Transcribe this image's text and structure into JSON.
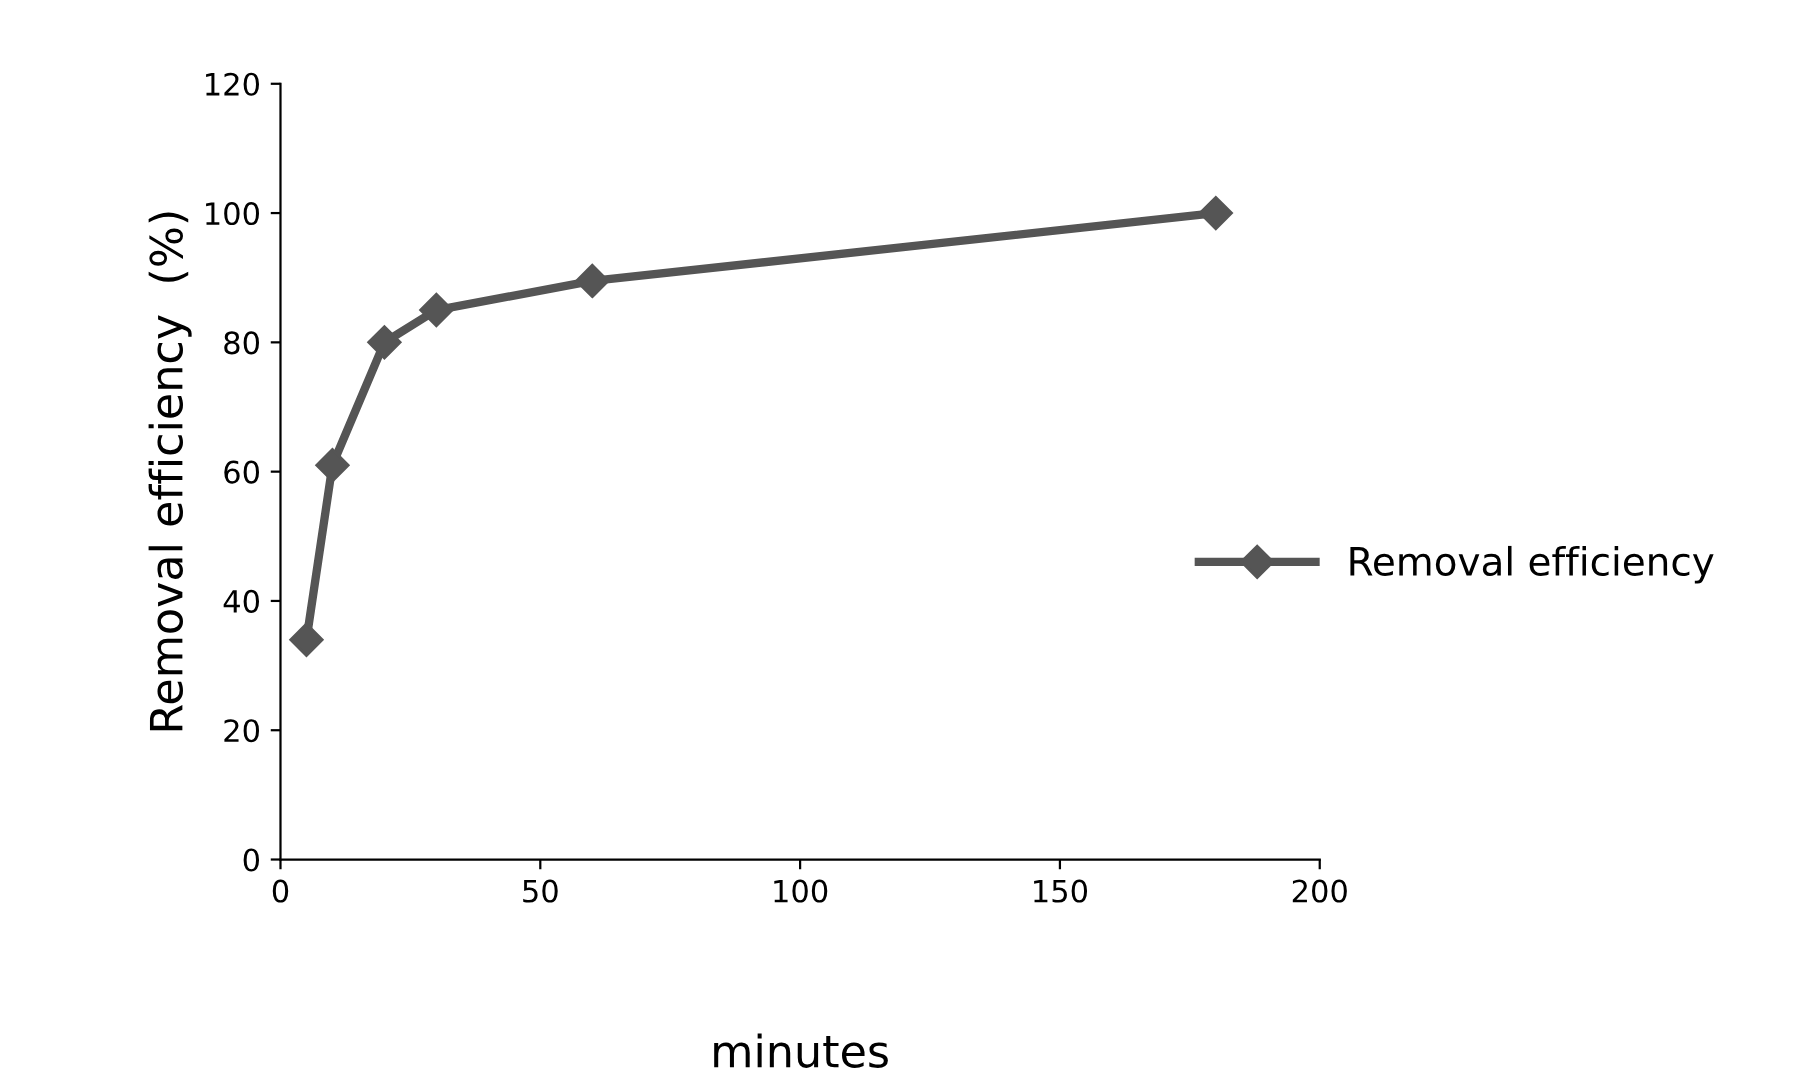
{
  "chart_data": {
    "type": "line",
    "xlabel": "minutes",
    "ylabel": "Removal efficiency  (%)",
    "x": [
      5,
      10,
      20,
      30,
      60,
      180
    ],
    "series": [
      {
        "name": "Removal efficiency",
        "color": "#555555",
        "values": [
          34,
          61,
          80,
          85,
          89.5,
          100
        ]
      }
    ],
    "xlim": [
      0,
      200
    ],
    "xticks": [
      0,
      50,
      100,
      150,
      200
    ],
    "ylim": [
      0,
      120
    ],
    "yticks": [
      0,
      20,
      40,
      60,
      80,
      100,
      120
    ],
    "marker": "diamond",
    "line_style": "solid",
    "grid": false,
    "legend": "right"
  }
}
